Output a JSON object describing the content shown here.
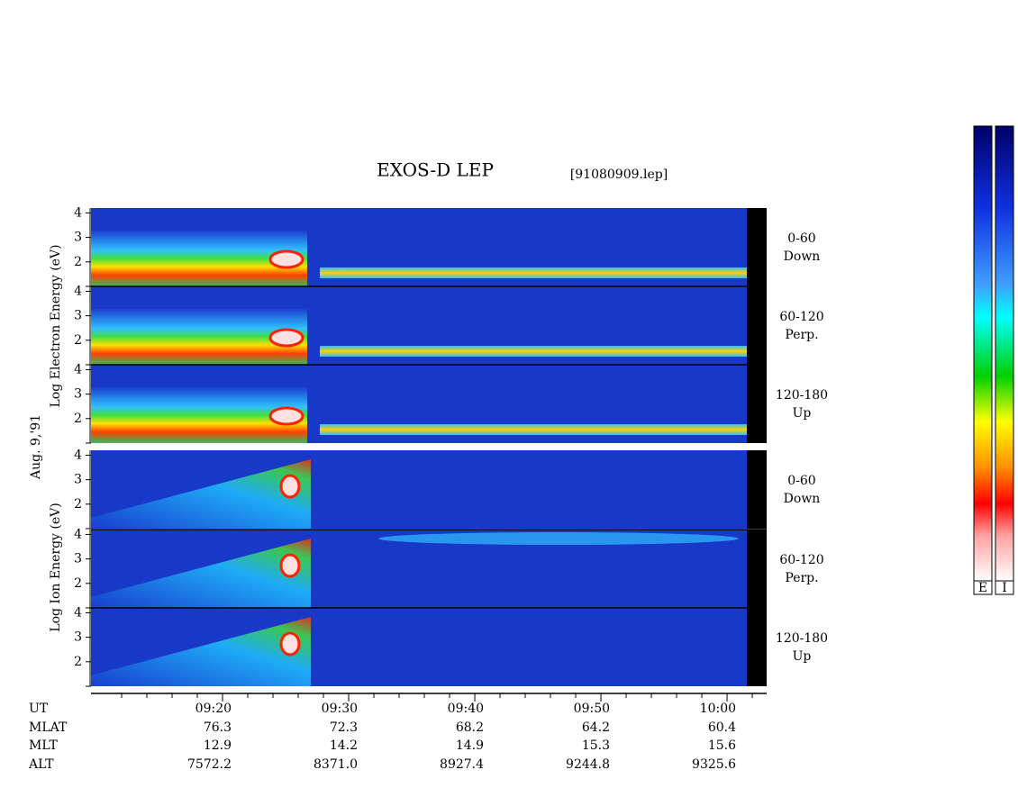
{
  "chart_data": {
    "type": "spectrogram",
    "title": "EXOS-D LEP",
    "file": "[91080909.lep]",
    "date": "Aug. 9,'91",
    "y_labels": [
      "Log Electron Energy (eV)",
      "Log Ion Energy (eV)"
    ],
    "panel_labels": [
      [
        "0-60",
        "Down"
      ],
      [
        "60-120",
        "Perp."
      ],
      [
        "120-180",
        "Up"
      ],
      [
        "0-60",
        "Down"
      ],
      [
        "60-120",
        "Perp."
      ],
      [
        "120-180",
        "Up"
      ]
    ],
    "ylim": [
      1,
      4.2
    ],
    "yticks": [
      {
        "value": 1,
        "label": ""
      },
      2,
      3,
      4
    ],
    "xlim": [
      9.57,
      63.14
    ],
    "xticks": [
      {
        "value": 20,
        "label": "09:20"
      },
      {
        "value": 30,
        "label": "09:30"
      },
      {
        "value": 40,
        "label": "09:40"
      },
      {
        "value": 50,
        "label": "09:50"
      },
      {
        "value": 60,
        "label": "10:00"
      }
    ],
    "xminorticks": [
      12,
      14,
      16,
      18,
      22,
      24,
      26,
      28,
      32,
      34,
      36,
      38,
      42,
      44,
      46,
      48,
      52,
      54,
      56,
      58,
      62
    ],
    "x_row_label": "UT",
    "ephemeris": [
      {
        "name": "MLAT",
        "values": [
          "76.3",
          "72.3",
          "68.2",
          "64.2",
          "60.4"
        ]
      },
      {
        "name": "MLT",
        "values": [
          "12.9",
          "14.2",
          "14.9",
          "15.3",
          "15.6"
        ]
      },
      {
        "name": "ALT",
        "values": [
          "7572.2",
          "8371.0",
          "8927.4",
          "9244.8",
          "9325.6"
        ]
      }
    ],
    "colorbar_labels": [
      "E",
      "I"
    ]
  }
}
